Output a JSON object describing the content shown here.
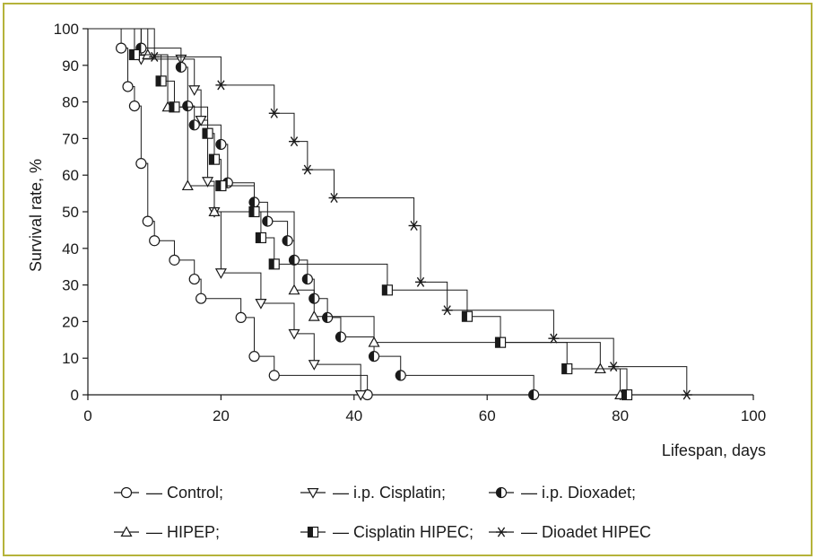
{
  "chart_data": {
    "type": "line",
    "title": "",
    "xlabel": "Lifespan, days",
    "ylabel": "Survival rate, %",
    "xlim": [
      0,
      100
    ],
    "ylim": [
      0,
      100
    ],
    "xticks": [
      0,
      20,
      40,
      60,
      80,
      100
    ],
    "yticks": [
      0,
      10,
      20,
      30,
      40,
      50,
      60,
      70,
      80,
      90,
      100
    ],
    "grid": false,
    "legend_position": "bottom",
    "series": [
      {
        "name": "Control",
        "legend_label": "— Control;",
        "marker": "circle-open",
        "points": [
          [
            0,
            100
          ],
          [
            5,
            94.7
          ],
          [
            6,
            84.2
          ],
          [
            7,
            78.9
          ],
          [
            8,
            63.2
          ],
          [
            9,
            47.4
          ],
          [
            10,
            42.1
          ],
          [
            13,
            36.8
          ],
          [
            16,
            31.6
          ],
          [
            17,
            26.3
          ],
          [
            23,
            21.1
          ],
          [
            25,
            10.5
          ],
          [
            28,
            5.3
          ],
          [
            42,
            0
          ]
        ]
      },
      {
        "name": "i.p. Cisplatin",
        "legend_label": "— i.p. Cisplatin;",
        "marker": "triangle-down-open",
        "points": [
          [
            0,
            100
          ],
          [
            8,
            91.7
          ],
          [
            14,
            91.7
          ],
          [
            16,
            83.3
          ],
          [
            17,
            75
          ],
          [
            18,
            58.3
          ],
          [
            19,
            50
          ],
          [
            20,
            33.3
          ],
          [
            26,
            25
          ],
          [
            31,
            16.7
          ],
          [
            34,
            8.3
          ],
          [
            41,
            0
          ]
        ]
      },
      {
        "name": "i.p. Dioxadet",
        "legend_label": "— i.p. Dioxadet;",
        "marker": "circle-half",
        "points": [
          [
            0,
            100
          ],
          [
            8,
            94.7
          ],
          [
            14,
            89.5
          ],
          [
            15,
            78.9
          ],
          [
            16,
            73.7
          ],
          [
            20,
            68.4
          ],
          [
            21,
            57.9
          ],
          [
            25,
            52.6
          ],
          [
            27,
            47.4
          ],
          [
            30,
            42.1
          ],
          [
            31,
            36.8
          ],
          [
            33,
            31.6
          ],
          [
            34,
            26.3
          ],
          [
            36,
            21.1
          ],
          [
            38,
            15.8
          ],
          [
            43,
            10.5
          ],
          [
            47,
            5.3
          ],
          [
            67,
            0
          ]
        ]
      },
      {
        "name": "HIPEP",
        "legend_label": "— HIPEP;",
        "marker": "triangle-up-open",
        "points": [
          [
            0,
            100
          ],
          [
            9,
            92.9
          ],
          [
            12,
            78.6
          ],
          [
            15,
            57.1
          ],
          [
            19,
            50
          ],
          [
            31,
            28.6
          ],
          [
            34,
            21.4
          ],
          [
            43,
            14.3
          ],
          [
            77,
            7.1
          ],
          [
            80,
            0
          ]
        ]
      },
      {
        "name": "Cisplatin HIPEC",
        "legend_label": "— Cisplatin HIPEC;",
        "marker": "square-half",
        "points": [
          [
            0,
            100
          ],
          [
            7,
            92.9
          ],
          [
            11,
            85.7
          ],
          [
            13,
            78.6
          ],
          [
            18,
            71.4
          ],
          [
            19,
            64.3
          ],
          [
            20,
            57.1
          ],
          [
            25,
            50
          ],
          [
            26,
            42.9
          ],
          [
            28,
            35.7
          ],
          [
            45,
            28.6
          ],
          [
            57,
            21.4
          ],
          [
            62,
            14.3
          ],
          [
            72,
            7.1
          ],
          [
            81,
            0
          ]
        ]
      },
      {
        "name": "Dioadet HIPEC",
        "legend_label": "— Dioadet HIPEC",
        "marker": "asterisk",
        "points": [
          [
            0,
            100
          ],
          [
            10,
            92.3
          ],
          [
            20,
            84.6
          ],
          [
            28,
            76.9
          ],
          [
            31,
            69.2
          ],
          [
            33,
            61.5
          ],
          [
            37,
            53.8
          ],
          [
            49,
            46.2
          ],
          [
            50,
            30.8
          ],
          [
            54,
            23.1
          ],
          [
            70,
            15.4
          ],
          [
            79,
            7.7
          ],
          [
            90,
            0
          ]
        ]
      }
    ]
  }
}
